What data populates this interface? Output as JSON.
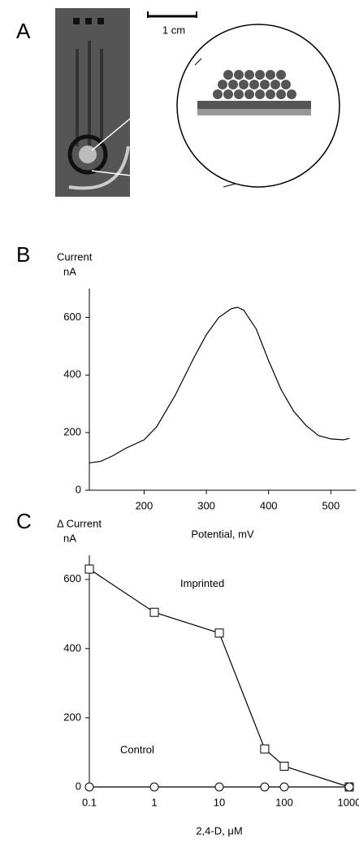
{
  "panel_a": {
    "panel_label": "A",
    "scale_bar": "1 cm"
  },
  "chart_data": [
    {
      "type": "line",
      "panel_label": "B",
      "ylabel": "Current",
      "ylabel_unit": "nA",
      "xlabel": "Potential, mV",
      "x": [
        112,
        130,
        150,
        170,
        200,
        220,
        250,
        280,
        300,
        320,
        340,
        350,
        360,
        380,
        400,
        420,
        440,
        460,
        480,
        500,
        520,
        530
      ],
      "series": [
        {
          "name": "Current",
          "color": "#000000",
          "values": [
            95,
            100,
            120,
            145,
            175,
            220,
            330,
            460,
            540,
            600,
            630,
            635,
            625,
            560,
            450,
            350,
            275,
            225,
            190,
            178,
            175,
            180
          ]
        }
      ],
      "xlim": [
        112,
        540
      ],
      "xticks": [
        200,
        300,
        400,
        500
      ],
      "ylim": [
        0,
        700
      ],
      "yticks": [
        0,
        200,
        400,
        600
      ],
      "log_x": false,
      "markers": false
    },
    {
      "type": "line",
      "panel_label": "C",
      "ylabel": "Δ Current",
      "ylabel_unit": "nA",
      "xlabel": "2,4-D, μM",
      "x": [
        0.1,
        1,
        10,
        50,
        100,
        1000
      ],
      "series": [
        {
          "name": "Imprinted",
          "color": "#000000",
          "marker": "square",
          "values": [
            630,
            505,
            445,
            110,
            60,
            0
          ]
        },
        {
          "name": "Control",
          "color": "#000000",
          "marker": "circle",
          "values": [
            0,
            0,
            0,
            0,
            0,
            0
          ]
        }
      ],
      "xlim": [
        0.1,
        1000
      ],
      "xticks": [
        0.1,
        1,
        10,
        100,
        1000
      ],
      "ylim": [
        0,
        670
      ],
      "yticks": [
        0,
        200,
        400,
        600
      ],
      "log_x": true,
      "markers": true
    }
  ]
}
